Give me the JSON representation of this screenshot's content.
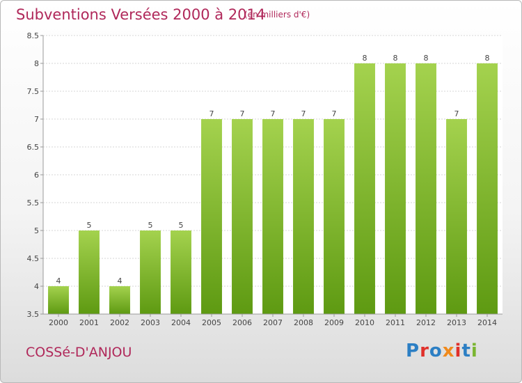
{
  "header": {
    "title": "Subventions Versées 2000 à 2014",
    "subtitle": "(en milliers d'€)"
  },
  "footer": {
    "commune": "COSSé-D'ANJOU",
    "logo_text": "Proxiti"
  },
  "chart_data": {
    "type": "bar",
    "title": "Subventions Versées 2000 à 2014",
    "subtitle": "(en milliers d'€)",
    "xlabel": "",
    "ylabel": "",
    "categories": [
      "2000",
      "2001",
      "2002",
      "2003",
      "2004",
      "2005",
      "2006",
      "2007",
      "2008",
      "2009",
      "2010",
      "2011",
      "2012",
      "2013",
      "2014"
    ],
    "values": [
      4,
      5,
      4,
      5,
      5,
      7,
      7,
      7,
      7,
      7,
      8,
      8,
      8,
      7,
      8
    ],
    "value_labels": [
      "4",
      "5",
      "4",
      "5",
      "5",
      "7",
      "7",
      "7",
      "7",
      "7",
      "8",
      "8",
      "8",
      "7",
      "8"
    ],
    "ylim": [
      3.5,
      8.5
    ],
    "y_ticks": [
      "3.5",
      "4",
      "4.5",
      "5",
      "5.5",
      "6",
      "6.5",
      "7",
      "7.5",
      "8",
      "8.5"
    ],
    "grid": true,
    "bar_color_top": "#a4d24e",
    "bar_color_bottom": "#5e9a12"
  }
}
